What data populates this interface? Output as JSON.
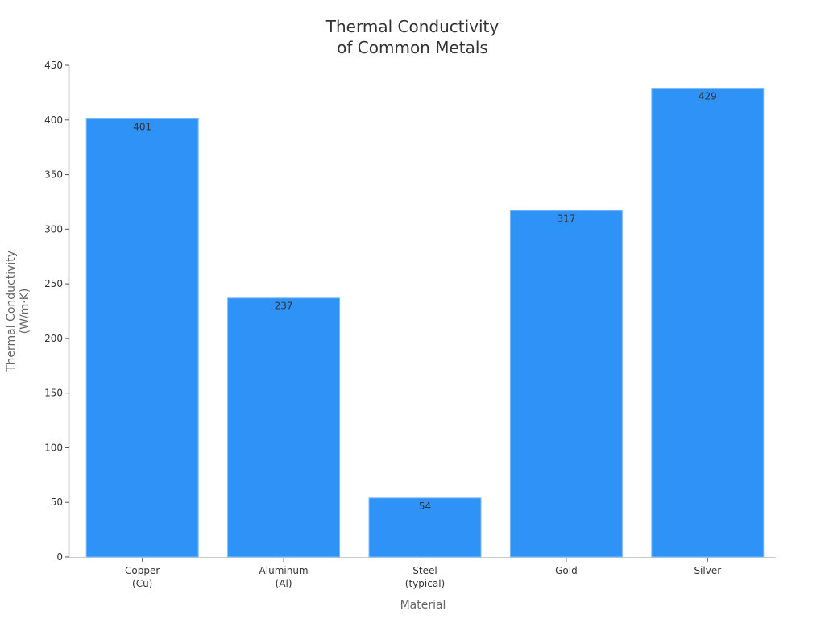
{
  "chart_data": {
    "type": "bar",
    "title": "Thermal Conductivity of Common Metals",
    "title_lines": [
      "Thermal Conductivity",
      "of Common Metals"
    ],
    "xlabel": "Material",
    "ylabel": "Thermal Conductivity (W/m·K)",
    "ylabel_lines": [
      "Thermal Conductivity",
      "(W/m·K)"
    ],
    "categories": [
      "Copper (Cu)",
      "Aluminum (Al)",
      "Steel (typical)",
      "Gold",
      "Silver"
    ],
    "category_lines": [
      [
        "Copper",
        "(Cu)"
      ],
      [
        "Aluminum",
        "(Al)"
      ],
      [
        "Steel",
        "(typical)"
      ],
      [
        "Gold"
      ],
      [
        "Silver"
      ]
    ],
    "values": [
      401,
      237,
      54,
      317,
      429
    ],
    "data_labels": [
      "401",
      "237",
      "54",
      "317",
      "429"
    ],
    "ylim": [
      0,
      450
    ],
    "yticks": [
      0,
      50,
      100,
      150,
      200,
      250,
      300,
      350,
      400,
      450
    ],
    "grid": false,
    "legend": null,
    "bar_color": "#2f92f7",
    "bar_edge_color": "#7fbcf9"
  }
}
